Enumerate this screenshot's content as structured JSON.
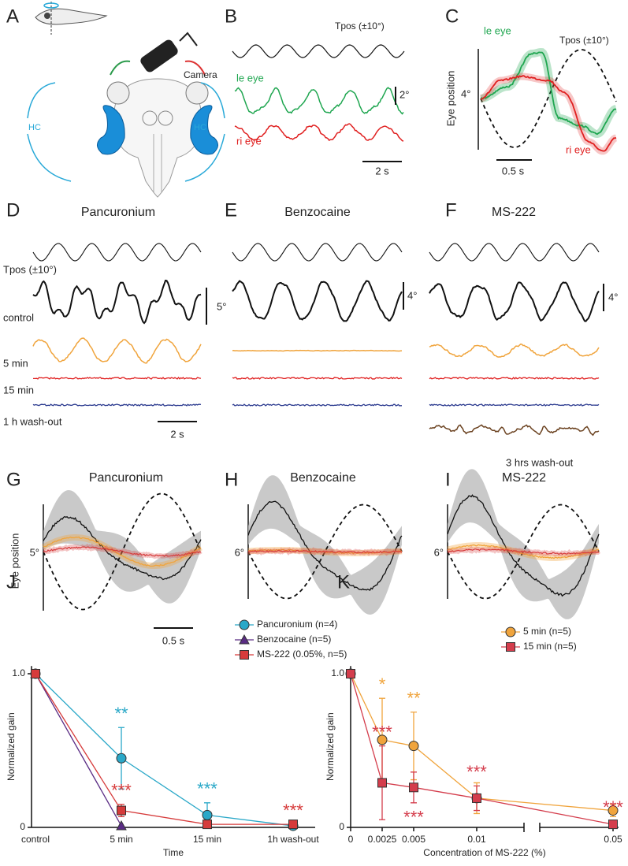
{
  "panels": {
    "A": {
      "letter": "A",
      "hc_left": "HC",
      "hc_right": "HC",
      "camera": "Camera"
    },
    "B": {
      "letter": "B",
      "tpos": "Tpos (±10°)",
      "le_eye": "le eye",
      "ri_eye": "ri eye",
      "scale_y": "2°",
      "scale_x": "2 s"
    },
    "C": {
      "letter": "C",
      "tpos": "Tpos (±10°)",
      "le_eye": "le eye",
      "ri_eye": "ri eye",
      "ylabel": "Eye position",
      "scale_y": "4°",
      "scale_x": "0.5 s"
    },
    "D": {
      "letter": "D",
      "title": "Pancuronium",
      "scale_y": "5°",
      "scale_x": "2 s"
    },
    "E": {
      "letter": "E",
      "title": "Benzocaine",
      "scale_y": "4°"
    },
    "F": {
      "letter": "F",
      "title": "MS-222",
      "scale_y": "4°",
      "washout": "3 hrs wash-out"
    },
    "rows": {
      "tpos": "Tpos (±10°)",
      "control": "control",
      "min5": "5 min",
      "min15": "15 min",
      "washout": "1 h wash-out"
    },
    "G": {
      "letter": "G",
      "title": "Pancuronium",
      "ylabel": "Eye position",
      "scale_y": "5°",
      "scale_x": "0.5 s"
    },
    "H": {
      "letter": "H",
      "title": "Benzocaine",
      "scale_y": "6°"
    },
    "I": {
      "letter": "I",
      "title": "MS-222",
      "scale_y": "6°"
    }
  },
  "chart_data": [
    {
      "type": "line",
      "label": "J",
      "xlabel": "Time",
      "ylabel": "Normalized gain",
      "categories": [
        "control",
        "5 min",
        "15 min",
        "1h wash-out"
      ],
      "ylim": [
        0,
        1.05
      ],
      "yticks": [
        0,
        {
          "value": 1,
          "label": "1.0"
        }
      ],
      "legend": "upper right",
      "series": [
        {
          "name": "Pancuronium (n=4)",
          "color": "#2aa8c8",
          "marker": "circle",
          "values": [
            1,
            0.45,
            0.08,
            0.01
          ],
          "errors": [
            null,
            0.2,
            0.08,
            null
          ],
          "stars": [
            null,
            "**",
            "***",
            null
          ]
        },
        {
          "name": "Benzocaine (n=5)",
          "color": "#5a2c84",
          "marker": "triangle",
          "values": [
            1,
            0.01,
            null,
            null
          ],
          "errors": [
            null,
            null,
            null,
            null
          ],
          "stars": [
            null,
            null,
            null,
            null
          ]
        },
        {
          "name": "MS-222 (0.05%, n=5)",
          "color": "#d63b3b",
          "marker": "square",
          "values": [
            1,
            0.11,
            0.02,
            0.02
          ],
          "errors": [
            null,
            0.04,
            null,
            null
          ],
          "stars": [
            null,
            "***",
            null,
            "***"
          ]
        }
      ]
    },
    {
      "type": "line",
      "label": "K",
      "xlabel": "Concentration of MS-222 (%)",
      "ylabel": "Normalized gain",
      "x": [
        0,
        0.0025,
        0.005,
        0.01,
        0.05
      ],
      "xlim": [
        0,
        0.05
      ],
      "xbreak": [
        0.01375,
        0.047
      ],
      "xticks": [
        0,
        0.0025,
        0.005,
        0.01,
        0.05
      ],
      "ylim": [
        0,
        1.05
      ],
      "yticks": [
        0,
        {
          "value": 1,
          "label": "1.0"
        }
      ],
      "legend": "upper right",
      "series": [
        {
          "name": "5 min (n=5)",
          "color": "#f0a43c",
          "marker": "circle",
          "values": [
            1,
            0.57,
            0.53,
            0.19,
            0.11
          ],
          "errors": [
            null,
            0.27,
            0.22,
            0.1,
            0.04
          ],
          "stars": [
            null,
            "*",
            "**",
            null,
            null
          ]
        },
        {
          "name": "15 min (n=5)",
          "color": "#d43d4c",
          "marker": "square",
          "values": [
            1,
            0.29,
            0.26,
            0.19,
            0.02
          ],
          "errors": [
            null,
            0.24,
            0.1,
            0.08,
            0.02
          ],
          "stars": [
            null,
            "***",
            "***",
            "***",
            "***"
          ]
        }
      ]
    }
  ]
}
